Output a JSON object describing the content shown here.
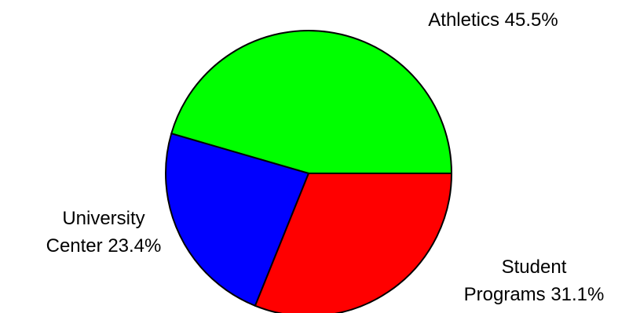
{
  "chart_data": {
    "type": "pie",
    "title": "",
    "start_angle_deg": 0,
    "direction": "counterclockwise",
    "slices": [
      {
        "category": "Athletics",
        "value": 45.5,
        "label_lines": [
          "Athletics 45.5%"
        ],
        "color": "#00ff00"
      },
      {
        "category": "University Center",
        "value": 23.4,
        "label_lines": [
          "University",
          "Center 23.4%"
        ],
        "color": "#0000ff"
      },
      {
        "category": "Student Programs",
        "value": 31.1,
        "label_lines": [
          "Student",
          "Programs 31.1%"
        ],
        "color": "#ff0000"
      }
    ],
    "slice_border_color": "#000000"
  }
}
